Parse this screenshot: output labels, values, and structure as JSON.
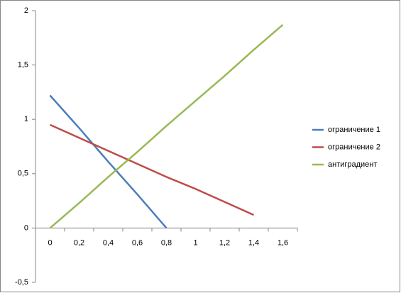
{
  "chart_data": {
    "type": "line",
    "categories": [
      "0",
      "0,2",
      "0,4",
      "0,6",
      "0,8",
      "1",
      "1,2",
      "1,4",
      "1,6"
    ],
    "series": [
      {
        "name": "ограничение 1",
        "color": "#4a7ebb",
        "values": [
          1.22,
          0.92,
          0.61,
          0.31,
          0,
          null,
          null,
          null,
          null
        ]
      },
      {
        "name": "ограничение 2",
        "color": "#be4b48",
        "values": [
          0.95,
          0.83,
          0.71,
          0.59,
          0.47,
          0.36,
          0.24,
          0.12,
          null
        ]
      },
      {
        "name": "антиградиент",
        "color": "#98b954",
        "values": [
          0,
          0.23,
          0.47,
          0.7,
          0.94,
          1.17,
          1.4,
          1.64,
          1.87
        ]
      }
    ],
    "ylim": [
      -0.5,
      2
    ],
    "yticks": [
      {
        "value": -0.5,
        "label": "-0,5"
      },
      0,
      {
        "value": 0.5,
        "label": "0,5"
      },
      1,
      {
        "value": 1.5,
        "label": "1,5"
      },
      2
    ],
    "legend": "right"
  }
}
